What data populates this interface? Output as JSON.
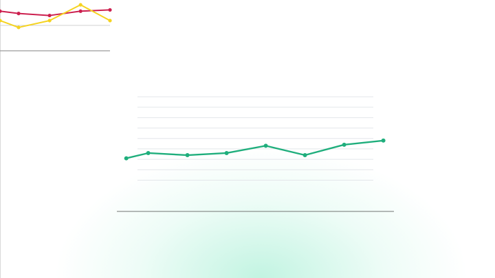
{
  "chart_data": [
    {
      "type": "line",
      "x": [
        0,
        0.6,
        1.6,
        2.6,
        3.55
      ],
      "xlim": [
        0,
        3.55
      ],
      "ylim": [
        0,
        2
      ],
      "gridlines": [
        1
      ],
      "series": [
        {
          "name": null,
          "color": "#cc1f4e",
          "values": [
            1.56,
            1.47,
            1.39,
            1.56,
            1.61
          ]
        },
        {
          "name": null,
          "color": "#f5d320",
          "values": [
            1.19,
            0.92,
            1.19,
            1.81,
            1.19
          ]
        }
      ]
    },
    {
      "type": "line",
      "x": [
        0.44,
        1,
        2,
        3,
        4,
        5,
        6,
        7
      ],
      "xlim": [
        0.2,
        7.27
      ],
      "ylim": [
        0,
        11
      ],
      "gridlines": [
        3,
        4,
        5,
        6,
        7,
        8,
        9,
        10,
        11
      ],
      "series": [
        {
          "name": null,
          "color": "#1fae7c",
          "values": [
            5.1,
            5.6,
            5.4,
            5.6,
            6.3,
            5.4,
            6.4,
            6.8
          ]
        }
      ]
    }
  ]
}
